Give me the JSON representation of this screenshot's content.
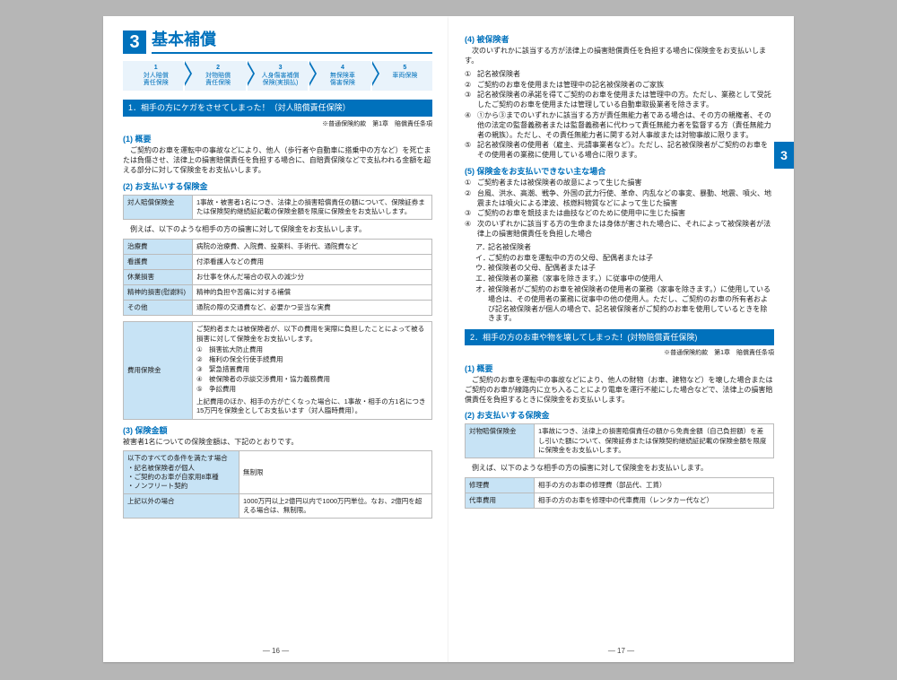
{
  "section": {
    "num": "3",
    "title": "基本補償"
  },
  "steps": [
    {
      "n": "1",
      "l1": "対人賠償",
      "l2": "責任保険"
    },
    {
      "n": "2",
      "l1": "対物賠償",
      "l2": "責任保険"
    },
    {
      "n": "3",
      "l1": "人身傷害補償",
      "l2": "保険(実損払)"
    },
    {
      "n": "4",
      "l1": "無保険車",
      "l2": "傷害保険"
    },
    {
      "n": "5",
      "l1": "車両保険",
      "l2": ""
    }
  ],
  "left": {
    "bar1": "1．相手の方にケガをさせてしまった！（対人賠償責任保険）",
    "note": "※普通保険約款　第1章　賠償責任条項",
    "h1": "(1) 概要",
    "p1": "ご契約のお車を運転中の事故などにより、他人（歩行者や自動車に搭乗中の方など）を死亡または負傷させ、法律上の損害賠償責任を負担する場合に、自賠責保険などで支払われる金額を超える部分に対して保険金をお支払いします。",
    "h2": "(2) お支払いする保険金",
    "t1_head": "対人賠償保険金",
    "t1_body": "1事故・被害者1名につき、法律上の損害賠償責任の額について、保険証券または保険契約継続証記載の保険金額を限度に保険金をお支払いします。",
    "p2": "例えば、以下のような相手の方の損害に対して保険金をお支払いします。",
    "items1": [
      {
        "h": "治療費",
        "b": "病院の治療費、入院費、投薬料、手術代、通院費など"
      },
      {
        "h": "看護費",
        "b": "付添看護人などの費用"
      },
      {
        "h": "休業損害",
        "b": "お仕事を休んだ場合の収入の減少分"
      },
      {
        "h": "精神的損害(慰謝料)",
        "b": "精神的負担や苦痛に対する補償"
      },
      {
        "h": "その他",
        "b": "通院の際の交通費など、必要かつ妥当な実費"
      }
    ],
    "t2_head": "費用保険金",
    "t2_body1": "ご契約者または被保険者が、以下の費用を実際に負担したことによって被る損害に対して保険金をお支払いします。",
    "t2_list": [
      "損害拡大防止費用",
      "権利の保全行使手続費用",
      "緊急措置費用",
      "被保険者の示談交渉費用・協力義務費用",
      "争訟費用"
    ],
    "t2_body2": "上記費用のほか、相手の方が亡くなった場合に、1事故・相手の方1名につき15万円を保険金としてお支払います（対人臨時費用）。",
    "h3": "(3) 保険金額",
    "p3": "被害者1名についての保険金額は、下記のとおりです。",
    "t3": [
      {
        "h": "以下のすべての条件を満たす場合\n・記名被保険者が個人\n・ご契約のお車が自家用8車種\n・ノンフリート契約",
        "b": "無制限"
      },
      {
        "h": "上記以外の場合",
        "b": "1000万円以上2億円以内で1000万円単位。なお、2億円を超える場合は、無制限。"
      }
    ]
  },
  "right": {
    "sideTab": "3",
    "h4": "(4) 被保険者",
    "p4": "次のいずれかに該当する方が法律上の損害賠償責任を負担する場合に保険金をお支払いします。",
    "list4": [
      "記名被保険者",
      "ご契約のお車を使用または管理中の記名被保険者のご家族",
      "記名被保険者の承諾を得てご契約のお車を使用または管理中の方。ただし、業務として受託したご契約のお車を使用または管理している自動車取扱業者を除きます。",
      "①から③までのいずれかに該当する方が責任無能力者である場合は、その方の親権者、その他の法定の監督義務者または監督義務者に代わって責任無能力者を監督する方（責任無能力者の親族）。ただし、その責任無能力者に関する対人事故または対物事故に限ります。",
      "記名被保険者の使用者（雇主、元請事業者など）。ただし、記名被保険者がご契約のお車をその使用者の業務に使用している場合に限ります。"
    ],
    "h5": "(5) 保険金をお支払いできない主な場合",
    "list5": [
      "ご契約者または被保険者の故意によって生じた損害",
      "台風、洪水、高潮、戦争、外国の武力行使、革命、内乱などの事変、暴動、地震、噴火、地震または噴火による津波、核燃料物質などによって生じた損害",
      "ご契約のお車を競技または曲技などのために使用中に生じた損害",
      "次のいずれかに該当する方の生命または身体が害された場合に、それによって被保険者が法律上の損害賠償責任を負担した場合"
    ],
    "sub5": [
      "ア．記名被保険者",
      "イ．ご契約のお車を運転中の方の父母、配偶者または子",
      "ウ．被保険者の父母、配偶者または子",
      "エ．被保険者の業務（家事を除きます。）に従事中の使用人",
      "オ．被保険者がご契約のお車を被保険者の使用者の業務（家事を除きます。）に使用している場合は、その使用者の業務に従事中の他の使用人。ただし、ご契約のお車の所有者および記名被保険者が個人の場合で、記名被保険者がご契約のお車を使用しているときを除きます。"
    ],
    "bar2": "2．相手の方のお車や物を壊してしまった！(対物賠償責任保険)",
    "note2": "※普通保険約款　第1章　賠償責任条項",
    "r_h1": "(1) 概要",
    "r_p1": "ご契約のお車を運転中の事故などにより、他人の財物（お車、建物など）を壊した場合またはご契約のお車が線路内に立ち入ることにより電車を運行不能にした場合などで、法律上の損害賠償責任を負担するときに保険金をお支払いします。",
    "r_h2": "(2) お支払いする保険金",
    "r_t1_head": "対物賠償保険金",
    "r_t1_body": "1事故につき、法律上の損害賠償責任の額から免責金額（自己負担額）を差し引いた額について、保険証券または保険契約継続証記載の保険金額を限度に保険金をお支払いします。",
    "r_p2": "例えば、以下のような相手の方の損害に対して保険金をお支払いします。",
    "r_items": [
      {
        "h": "修理費",
        "b": "相手の方のお車の修理費（部品代、工賃）"
      },
      {
        "h": "代車費用",
        "b": "相手の方のお車を修理中の代車費用（レンタカー代など）"
      }
    ]
  },
  "pages": {
    "left": "— 16 —",
    "right": "— 17 —"
  }
}
